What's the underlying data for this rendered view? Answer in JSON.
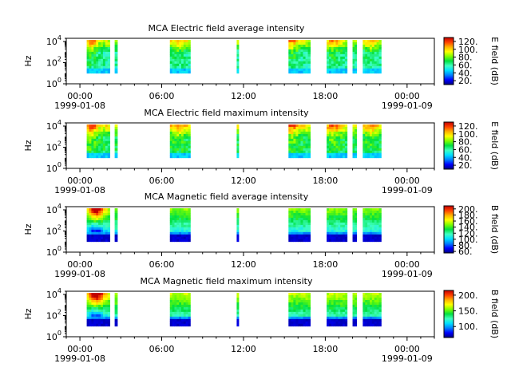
{
  "figure": {
    "background": "#ffffff",
    "colormap": [
      "#000080",
      "#0000ff",
      "#0080ff",
      "#00e0ff",
      "#40ffc0",
      "#00e040",
      "#80ff00",
      "#ffff00",
      "#ffb000",
      "#ff4000",
      "#c00000"
    ]
  },
  "chart_data": [
    {
      "type": "heatmap",
      "title": "MCA  Electric field average intensity",
      "ylabel": "Hz",
      "y_scale": "log",
      "ylim": [
        1,
        20000
      ],
      "y_ticks": [
        {
          "value": 1,
          "base": "10",
          "exp": "0"
        },
        {
          "value": 100,
          "base": "10",
          "exp": "2"
        },
        {
          "value": 10000,
          "base": "10",
          "exp": "4"
        }
      ],
      "x_range_hours": [
        -1.0,
        26.0
      ],
      "x_ticks": [
        {
          "hour": 0,
          "label": "00:00",
          "date": "1999-01-08"
        },
        {
          "hour": 6,
          "label": "06:00",
          "date": ""
        },
        {
          "hour": 12,
          "label": "12:00",
          "date": ""
        },
        {
          "hour": 18,
          "label": "18:00",
          "date": ""
        },
        {
          "hour": 24,
          "label": "00:00",
          "date": "1999-01-09"
        }
      ],
      "colorbar": {
        "label": "E field (dB)",
        "range": [
          10,
          130
        ],
        "ticks": [
          {
            "value": 20,
            "label": "20."
          },
          {
            "value": 40,
            "label": "40."
          },
          {
            "value": 60,
            "label": "60."
          },
          {
            "value": 80,
            "label": "80."
          },
          {
            "value": 100,
            "label": "100."
          },
          {
            "value": 120,
            "label": "120."
          }
        ]
      },
      "style": "electric-average",
      "data_intervals_hours": [
        [
          0.5,
          2.2
        ],
        [
          2.55,
          2.75
        ],
        [
          6.6,
          8.1
        ],
        [
          11.5,
          11.65
        ],
        [
          15.3,
          16.9
        ],
        [
          18.1,
          19.6
        ],
        [
          20.0,
          20.3
        ],
        [
          20.75,
          22.1
        ]
      ],
      "intensity_range_db": [
        20,
        120
      ]
    },
    {
      "type": "heatmap",
      "title": "MCA  Electric field maximum intensity",
      "ylabel": "Hz",
      "y_scale": "log",
      "ylim": [
        1,
        20000
      ],
      "y_ticks": [
        {
          "value": 1,
          "base": "10",
          "exp": "0"
        },
        {
          "value": 100,
          "base": "10",
          "exp": "2"
        },
        {
          "value": 10000,
          "base": "10",
          "exp": "4"
        }
      ],
      "x_range_hours": [
        -1.0,
        26.0
      ],
      "x_ticks": [
        {
          "hour": 0,
          "label": "00:00",
          "date": "1999-01-08"
        },
        {
          "hour": 6,
          "label": "06:00",
          "date": ""
        },
        {
          "hour": 12,
          "label": "12:00",
          "date": ""
        },
        {
          "hour": 18,
          "label": "18:00",
          "date": ""
        },
        {
          "hour": 24,
          "label": "00:00",
          "date": "1999-01-09"
        }
      ],
      "colorbar": {
        "label": "E field (dB)",
        "range": [
          10,
          130
        ],
        "ticks": [
          {
            "value": 20,
            "label": "20."
          },
          {
            "value": 40,
            "label": "40."
          },
          {
            "value": 60,
            "label": "60."
          },
          {
            "value": 80,
            "label": "80."
          },
          {
            "value": 100,
            "label": "100."
          },
          {
            "value": 120,
            "label": "120."
          }
        ]
      },
      "style": "electric-maximum",
      "data_intervals_hours": [
        [
          0.5,
          2.2
        ],
        [
          2.55,
          2.75
        ],
        [
          6.6,
          8.1
        ],
        [
          11.5,
          11.65
        ],
        [
          15.3,
          16.9
        ],
        [
          18.1,
          19.6
        ],
        [
          20.0,
          20.3
        ],
        [
          20.75,
          22.1
        ]
      ],
      "intensity_range_db": [
        20,
        120
      ]
    },
    {
      "type": "heatmap",
      "title": "MCA  Magnetic field average intensity",
      "ylabel": "Hz",
      "y_scale": "log",
      "ylim": [
        1,
        20000
      ],
      "y_ticks": [
        {
          "value": 1,
          "base": "10",
          "exp": "0"
        },
        {
          "value": 100,
          "base": "10",
          "exp": "2"
        },
        {
          "value": 10000,
          "base": "10",
          "exp": "4"
        }
      ],
      "x_range_hours": [
        -1.0,
        26.0
      ],
      "x_ticks": [
        {
          "hour": 0,
          "label": "00:00",
          "date": "1999-01-08"
        },
        {
          "hour": 6,
          "label": "06:00",
          "date": ""
        },
        {
          "hour": 12,
          "label": "12:00",
          "date": ""
        },
        {
          "hour": 18,
          "label": "18:00",
          "date": ""
        },
        {
          "hour": 24,
          "label": "00:00",
          "date": "1999-01-09"
        }
      ],
      "colorbar": {
        "label": "B field (dB)",
        "range": [
          55,
          210
        ],
        "ticks": [
          {
            "value": 60,
            "label": "60."
          },
          {
            "value": 80,
            "label": "80."
          },
          {
            "value": 100,
            "label": "100."
          },
          {
            "value": 120,
            "label": "120."
          },
          {
            "value": 140,
            "label": "140."
          },
          {
            "value": 160,
            "label": "160."
          },
          {
            "value": 180,
            "label": "180."
          },
          {
            "value": 200,
            "label": "200."
          }
        ]
      },
      "style": "magnetic-average",
      "data_intervals_hours": [
        [
          0.5,
          2.2
        ],
        [
          2.55,
          2.75
        ],
        [
          6.6,
          8.1
        ],
        [
          11.5,
          11.65
        ],
        [
          15.3,
          16.9
        ],
        [
          18.1,
          19.6
        ],
        [
          20.0,
          20.3
        ],
        [
          20.75,
          22.1
        ]
      ],
      "intensity_range_db": [
        60,
        200
      ]
    },
    {
      "type": "heatmap",
      "title": "MCA  Magnetic field maximum intensity",
      "ylabel": "Hz",
      "y_scale": "log",
      "ylim": [
        1,
        20000
      ],
      "y_ticks": [
        {
          "value": 1,
          "base": "10",
          "exp": "0"
        },
        {
          "value": 100,
          "base": "10",
          "exp": "2"
        },
        {
          "value": 10000,
          "base": "10",
          "exp": "4"
        }
      ],
      "x_range_hours": [
        -1.0,
        26.0
      ],
      "x_ticks": [
        {
          "hour": 0,
          "label": "00:00",
          "date": "1999-01-08"
        },
        {
          "hour": 6,
          "label": "06:00",
          "date": ""
        },
        {
          "hour": 12,
          "label": "12:00",
          "date": ""
        },
        {
          "hour": 18,
          "label": "18:00",
          "date": ""
        },
        {
          "hour": 24,
          "label": "00:00",
          "date": "1999-01-09"
        }
      ],
      "colorbar": {
        "label": "B field (dB)",
        "range": [
          65,
          215
        ],
        "ticks": [
          {
            "value": 100,
            "label": "100."
          },
          {
            "value": 150,
            "label": "150."
          },
          {
            "value": 200,
            "label": "200."
          }
        ]
      },
      "style": "magnetic-maximum",
      "data_intervals_hours": [
        [
          0.5,
          2.2
        ],
        [
          2.55,
          2.75
        ],
        [
          6.6,
          8.1
        ],
        [
          11.5,
          11.65
        ],
        [
          15.3,
          16.9
        ],
        [
          18.1,
          19.6
        ],
        [
          20.0,
          20.3
        ],
        [
          20.75,
          22.1
        ]
      ],
      "intensity_range_db": [
        65,
        210
      ]
    }
  ]
}
